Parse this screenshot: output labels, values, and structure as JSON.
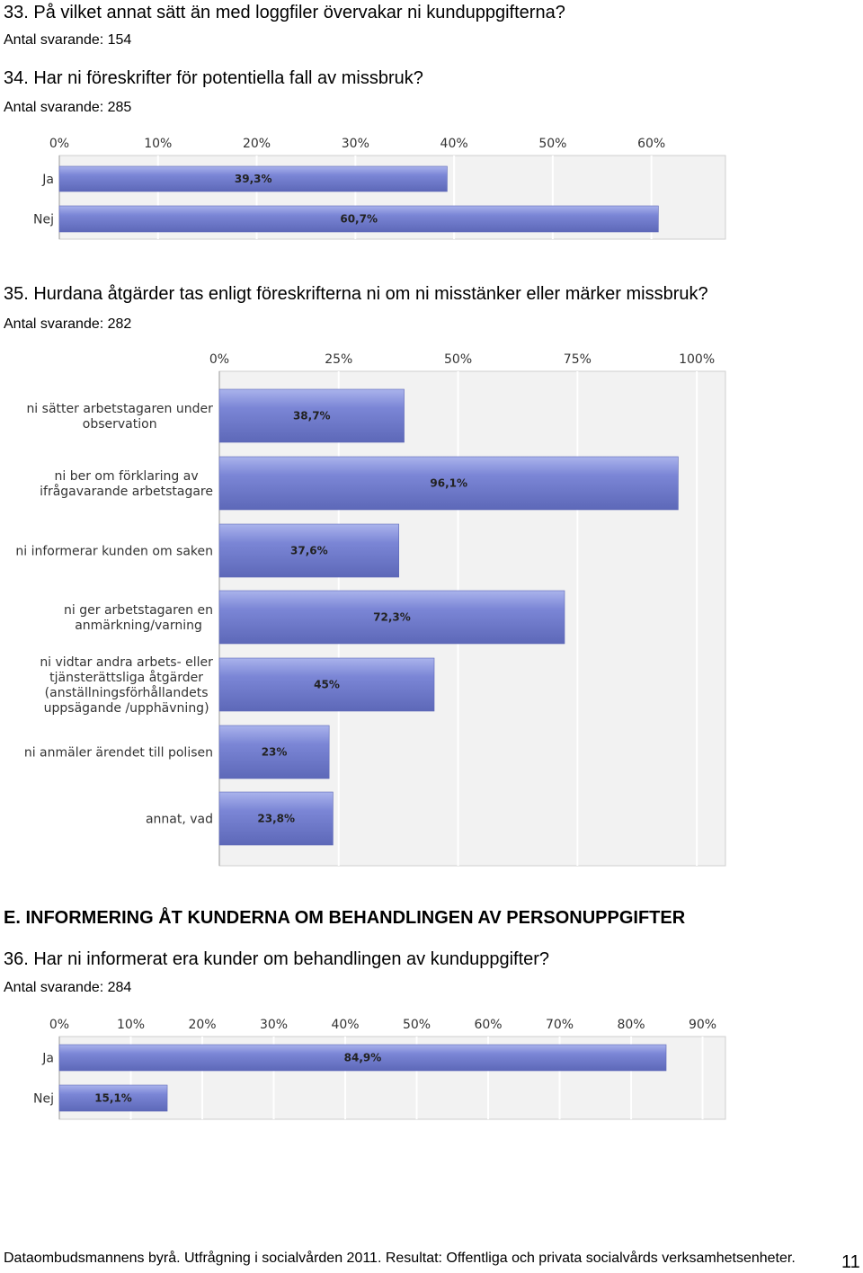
{
  "q33": {
    "title": "33. På vilket annat sätt än med loggfiler övervakar ni kunduppgifterna?",
    "respondents": "Antal svarande: 154"
  },
  "q34": {
    "title": "34. Har ni föreskrifter för potentiella fall av missbruk?",
    "respondents": "Antal svarande: 285"
  },
  "q35": {
    "title": "35. Hurdana åtgärder tas enligt föreskrifterna ni om ni misstänker eller märker missbruk?",
    "respondents": "Antal svarande: 282"
  },
  "sectionE": {
    "title": "E. INFORMERING ÅT KUNDERNA OM BEHANDLINGEN AV PERSONUPPGIFTER"
  },
  "q36": {
    "title": "36. Har ni informerat era kunder om behandlingen av kunduppgifter?",
    "respondents": "Antal svarande: 284"
  },
  "footer": {
    "text": "Dataombudsmannens byrå. Utfrågning i socialvården 2011. Resultat: Offentliga och privata socialvårds verksamhetsenheter.",
    "page": "11"
  },
  "colors": {
    "bar": "#7b86d6",
    "bar_light": "#aab3ec",
    "bar_dark": "#5d68b8",
    "plot_bg": "#f2f2f2",
    "grid": "#ffffff"
  },
  "chart_data": [
    {
      "type": "bar",
      "orientation": "horizontal",
      "question": "34",
      "categories": [
        "Ja",
        "Nej"
      ],
      "values": [
        39.3,
        60.7
      ],
      "value_labels": [
        "39,3%",
        "60,7%"
      ],
      "tick_labels": [
        "0%",
        "10%",
        "20%",
        "30%",
        "40%",
        "50%",
        "60%"
      ],
      "xlim": [
        0,
        67.5
      ],
      "grid": true
    },
    {
      "type": "bar",
      "orientation": "horizontal",
      "question": "35",
      "categories": [
        [
          "ni sätter arbetstagaren under",
          "observation"
        ],
        [
          "ni ber om förklaring av",
          "ifrågavarande arbetstagare"
        ],
        [
          "ni informerar kunden om saken"
        ],
        [
          "ni ger arbetstagaren en",
          "anmärkning/varning"
        ],
        [
          "ni vidtar andra arbets- eller",
          "tjänsterättsliga åtgärder",
          "(anställningsförhållandets",
          "uppsägande /upphävning)"
        ],
        [
          "ni anmäler ärendet till polisen"
        ],
        [
          "annat, vad"
        ]
      ],
      "values": [
        38.7,
        96.1,
        37.6,
        72.3,
        45,
        23,
        23.8
      ],
      "value_labels": [
        "38,7%",
        "96,1%",
        "37,6%",
        "72,3%",
        "45%",
        "23%",
        "23,8%"
      ],
      "tick_labels": [
        "0%",
        "25%",
        "50%",
        "75%",
        "100%"
      ],
      "xlim": [
        0,
        106
      ],
      "grid": true
    },
    {
      "type": "bar",
      "orientation": "horizontal",
      "question": "36",
      "categories": [
        "Ja",
        "Nej"
      ],
      "values": [
        84.9,
        15.1
      ],
      "value_labels": [
        "84,9%",
        "15,1%"
      ],
      "tick_labels": [
        "0%",
        "10%",
        "20%",
        "30%",
        "40%",
        "50%",
        "60%",
        "70%",
        "80%",
        "90%"
      ],
      "xlim": [
        0,
        93.2
      ],
      "grid": true
    }
  ]
}
